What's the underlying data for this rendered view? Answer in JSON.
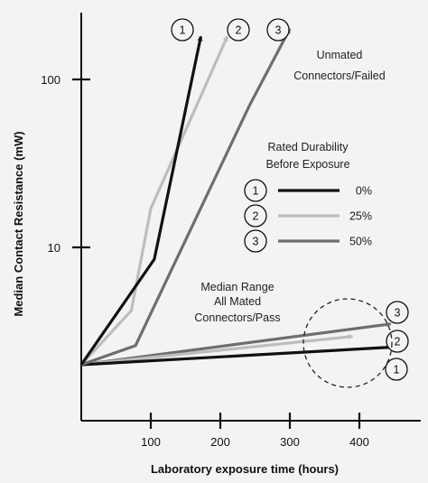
{
  "chart_data": {
    "type": "line",
    "title": "",
    "xlabel": "Laboratory exposure time (hours)",
    "ylabel": "Median Contact Resistance (mW)",
    "xlim": [
      0,
      470
    ],
    "ylim": [
      0.6,
      250
    ],
    "y_scale": "log",
    "x_ticks": [
      100,
      200,
      300,
      400
    ],
    "y_ticks": [
      10,
      100
    ],
    "grid": false,
    "legend": {
      "title": [
        "Rated Durability",
        "Before Exposure"
      ],
      "placement": "middle-right",
      "entries": [
        {
          "marker": "1",
          "label": "0%",
          "color": "#111111"
        },
        {
          "marker": "2",
          "label": "25%",
          "color": "#bdbdbd"
        },
        {
          "marker": "3",
          "label": "50%",
          "color": "#6e6e6e"
        }
      ]
    },
    "annotations": {
      "failed": [
        "Unmated",
        "Connectors/Failed"
      ],
      "pass": [
        "Median Range",
        "All Mated",
        "Connectors/Pass"
      ]
    },
    "series": [
      {
        "marker": "1",
        "group": "unmated",
        "color": "#111111",
        "x": [
          0,
          105,
          172
        ],
        "y": [
          2,
          8.5,
          180
        ]
      },
      {
        "marker": "2",
        "group": "unmated",
        "color": "#bdbdbd",
        "x": [
          0,
          72,
          100,
          210
        ],
        "y": [
          2,
          4.2,
          17,
          180
        ]
      },
      {
        "marker": "3",
        "group": "unmated",
        "color": "#6e6e6e",
        "x": [
          0,
          78,
          242,
          300
        ],
        "y": [
          2,
          2.6,
          70,
          200
        ]
      },
      {
        "marker": "1",
        "group": "mated",
        "color": "#111111",
        "x": [
          0,
          450
        ],
        "y": [
          2,
          2.55
        ]
      },
      {
        "marker": "2",
        "group": "mated",
        "color": "#bdbdbd",
        "x": [
          0,
          390
        ],
        "y": [
          2,
          2.95
        ]
      },
      {
        "marker": "3",
        "group": "mated",
        "color": "#6e6e6e",
        "x": [
          0,
          445
        ],
        "y": [
          2,
          3.5
        ]
      }
    ]
  }
}
